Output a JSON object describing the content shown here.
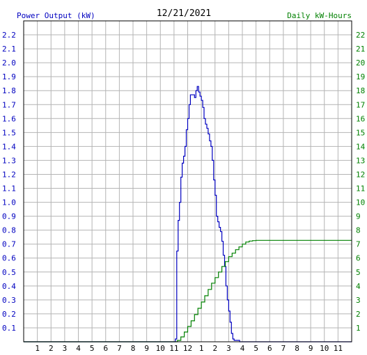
{
  "chart_data": {
    "type": "line",
    "title": "12/21/2021",
    "left_axis_label": "Power Output (kW)",
    "right_axis_label": "Daily kW-Hours",
    "x_tick_labels": [
      "1",
      "2",
      "3",
      "4",
      "5",
      "6",
      "7",
      "8",
      "9",
      "10",
      "11",
      "12",
      "1",
      "2",
      "3",
      "4",
      "5",
      "6",
      "7",
      "8",
      "9",
      "10",
      "11"
    ],
    "x_range_hours": [
      0,
      24
    ],
    "y_left_range": [
      0,
      2.3
    ],
    "y_left_ticks": [
      "0.1",
      "0.2",
      "0.3",
      "0.4",
      "0.5",
      "0.6",
      "0.7",
      "0.8",
      "0.9",
      "1.0",
      "1.1",
      "1.2",
      "1.3",
      "1.4",
      "1.5",
      "1.6",
      "1.7",
      "1.8",
      "1.9",
      "2.0",
      "2.1",
      "2.2"
    ],
    "y_right_range": [
      0,
      23
    ],
    "y_right_ticks": [
      "1",
      "2",
      "3",
      "4",
      "5",
      "6",
      "7",
      "8",
      "9",
      "10",
      "11",
      "12",
      "13",
      "14",
      "15",
      "16",
      "17",
      "18",
      "19",
      "20",
      "21",
      "22"
    ],
    "grid": true,
    "colors": {
      "power": "#0000c0",
      "energy": "#008000",
      "grid": "#b4b4b4",
      "frame": "#000000",
      "text": "#000000"
    },
    "series": [
      {
        "axis": "left",
        "x_hours": [
          0,
          11.0,
          11.1,
          11.2,
          11.3,
          11.4,
          11.5,
          11.6,
          11.7,
          11.8,
          11.9,
          12.0,
          12.1,
          12.2,
          12.3,
          12.4,
          12.5,
          12.6,
          12.7,
          12.8,
          12.9,
          13.0,
          13.1,
          13.2,
          13.3,
          13.4,
          13.5,
          13.6,
          13.7,
          13.8,
          13.9,
          14.0,
          14.1,
          14.2,
          14.3,
          14.4,
          14.5,
          14.6,
          14.7,
          14.8,
          14.9,
          15.0,
          15.1,
          15.2,
          15.3,
          15.4,
          15.5,
          15.6,
          15.7,
          15.8,
          15.9,
          16.0,
          16.1,
          16.2,
          16.3,
          16.4,
          16.5,
          16.6,
          16.7,
          16.8,
          16.9,
          17.0,
          17.5,
          24
        ],
        "values": [
          0,
          0,
          0.02,
          0.65,
          0.87,
          1.0,
          1.18,
          1.28,
          1.33,
          1.4,
          1.52,
          1.6,
          1.7,
          1.77,
          1.77,
          1.77,
          1.75,
          1.8,
          1.83,
          1.79,
          1.76,
          1.73,
          1.68,
          1.6,
          1.56,
          1.53,
          1.49,
          1.44,
          1.4,
          1.3,
          1.16,
          1.05,
          0.9,
          0.86,
          0.82,
          0.79,
          0.72,
          0.62,
          0.54,
          0.4,
          0.3,
          0.22,
          0.14,
          0.06,
          0.02,
          0.01,
          0.01,
          0.01,
          0.01,
          0.0,
          0,
          0,
          0,
          0,
          0,
          0,
          0,
          0,
          0,
          0,
          0,
          0,
          0,
          0
        ]
      },
      {
        "axis": "right",
        "x_hours": [
          0,
          11.0,
          11.25,
          11.5,
          11.75,
          12.0,
          12.25,
          12.5,
          12.75,
          13.0,
          13.25,
          13.5,
          13.75,
          14.0,
          14.25,
          14.5,
          14.75,
          15.0,
          15.25,
          15.5,
          15.75,
          16.0,
          16.25,
          16.5,
          16.75,
          17.0,
          17.5,
          24
        ],
        "values": [
          0,
          0,
          0.1,
          0.35,
          0.7,
          1.1,
          1.5,
          1.95,
          2.4,
          2.85,
          3.3,
          3.75,
          4.2,
          4.6,
          5.0,
          5.4,
          5.75,
          6.1,
          6.35,
          6.6,
          6.8,
          7.0,
          7.15,
          7.22,
          7.25,
          7.27,
          7.27,
          7.27
        ]
      }
    ]
  }
}
